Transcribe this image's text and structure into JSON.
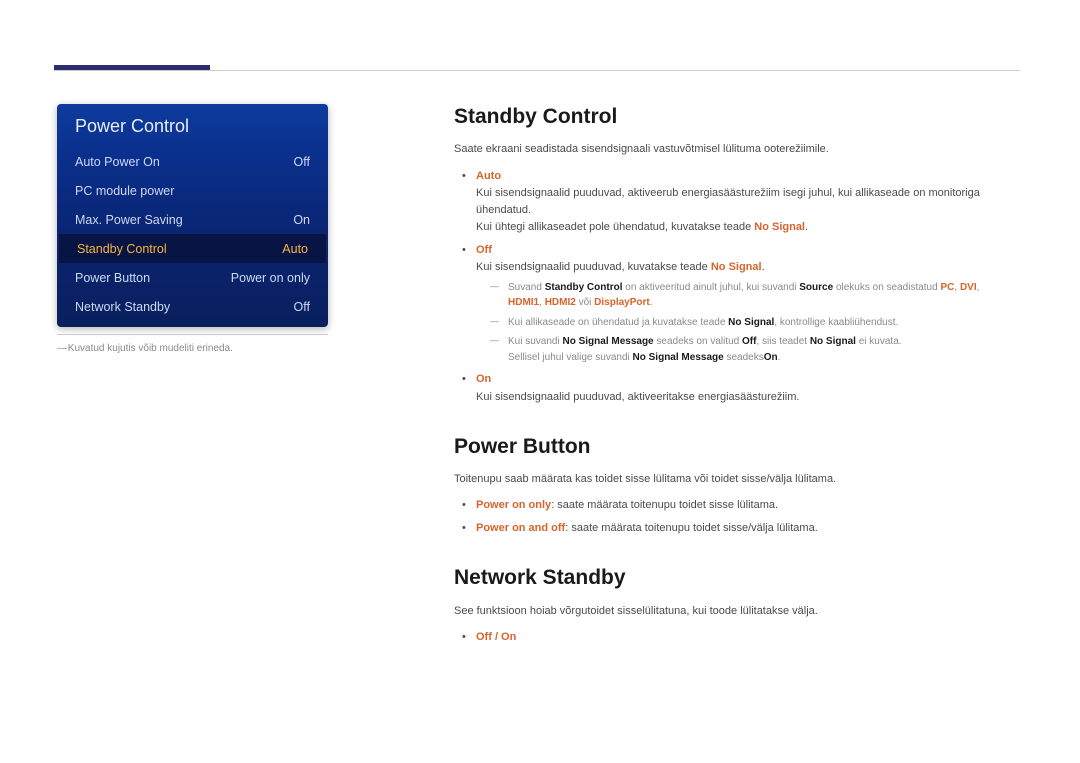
{
  "panel": {
    "title": "Power Control",
    "rows": [
      {
        "label": "Auto Power On",
        "value": "Off"
      },
      {
        "label": "PC module power",
        "value": ""
      },
      {
        "label": "Max. Power Saving",
        "value": "On"
      },
      {
        "label": "Standby Control",
        "value": "Auto"
      },
      {
        "label": "Power Button",
        "value": "Power on only"
      },
      {
        "label": "Network Standby",
        "value": "Off"
      }
    ],
    "note": "Kuvatud kujutis võib mudeliti erineda."
  },
  "sections": {
    "standby": {
      "heading": "Standby Control",
      "desc": "Saate ekraani seadistada sisendsignaali vastuvõtmisel lülituma ooterežiimile.",
      "opts": {
        "auto": {
          "label": "Auto",
          "text1": "Kui sisendsignaalid puuduvad, aktiveerub energiasäästurežiim isegi juhul, kui allikaseade on monitoriga ühendatud.",
          "text2_a": "Kui ühtegi allikaseadet pole ühendatud, kuvatakse teade ",
          "text2_b": "No Signal",
          "text2_c": "."
        },
        "off": {
          "label": "Off",
          "text1_a": "Kui sisendsignaalid puuduvad, kuvatakse teade ",
          "text1_b": "No Signal",
          "text1_c": ".",
          "note1_a": "Suvand ",
          "note1_b": "Standby Control",
          "note1_c": " on aktiveeritud ainult juhul, kui suvandi ",
          "note1_d": "Source",
          "note1_e": " olekuks on seadistatud ",
          "note1_f": "PC",
          "note1_g": ", ",
          "note1_h": "DVI",
          "note1_i": ", ",
          "note1_j": "HDMI1",
          "note1_k": ", ",
          "note1_l": "HDMI2",
          "note1_m": " või ",
          "note1_n": "DisplayPort",
          "note1_o": ".",
          "note2_a": "Kui allikaseade on ühendatud ja kuvatakse teade ",
          "note2_b": "No Signal",
          "note2_c": ", kontrollige kaabliühendust.",
          "note3_a": "Kui suvandi ",
          "note3_b": "No Signal Message",
          "note3_c": " seadeks on valitud ",
          "note3_d": "Off",
          "note3_e": ", siis teadet ",
          "note3_f": "No Signal",
          "note3_g": " ei kuvata.",
          "note3_h": "Sellisel juhul valige suvandi ",
          "note3_i": "No Signal Message",
          "note3_j": " seadeks",
          "note3_k": "On",
          "note3_l": "."
        },
        "on": {
          "label": "On",
          "text1": "Kui sisendsignaalid puuduvad, aktiveeritakse energiasäästurežiim."
        }
      }
    },
    "powerButton": {
      "heading": "Power Button",
      "desc": "Toitenupu saab määrata kas toidet sisse lülitama või toidet sisse/välja lülitama.",
      "opt1_label": "Power on only",
      "opt1_text": ": saate määrata toitenupu toidet sisse lülitama.",
      "opt2_label": "Power on and off",
      "opt2_text": ": saate määrata toitenupu toidet sisse/välja lülitama."
    },
    "network": {
      "heading": "Network Standby",
      "desc": "See funktsioon hoiab võrgutoidet sisselülitatuna, kui toode lülitatakse välja.",
      "opts": "Off / On"
    }
  }
}
